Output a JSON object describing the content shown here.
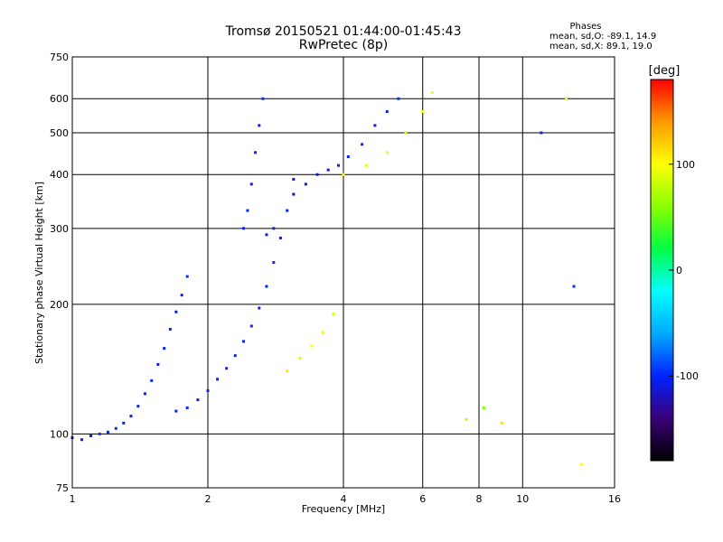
{
  "chart_data": {
    "type": "scatter",
    "title": "Tromsø 20150521 01:44:00-01:45:43",
    "subtitle": "RwPretec (8p)",
    "xlabel": "Frequency [MHz]",
    "ylabel": "Stationary phase Virtual Height [km]",
    "x_scale": "log",
    "y_scale": "log",
    "xlim": [
      1,
      16
    ],
    "ylim": [
      75,
      750
    ],
    "x_ticks": [
      "1",
      "2",
      "4",
      "6",
      "8",
      "10",
      "16"
    ],
    "x_tick_values": [
      1,
      2,
      4,
      6,
      8,
      10,
      16
    ],
    "y_ticks": [
      "75",
      "100",
      "200",
      "300",
      "400",
      "500",
      "600",
      "750"
    ],
    "y_tick_values": [
      75,
      100,
      200,
      300,
      400,
      500,
      600,
      750
    ],
    "grid": true,
    "phase_info": {
      "heading": "Phases",
      "line_o": "mean, sd,O: -89.1, 14.9",
      "line_x": "mean, sd,X: 89.1, 19.0"
    },
    "colorbar": {
      "label": "[deg]",
      "range": [
        -180,
        180
      ],
      "ticks": [
        "100",
        "0",
        "-100"
      ],
      "tick_values": [
        100,
        0,
        -100
      ],
      "colors": [
        "#000000",
        "#3a0078",
        "#0022ff",
        "#00aaff",
        "#00ffff",
        "#00ff44",
        "#88ff00",
        "#ffff00",
        "#ff9900",
        "#ff0000"
      ]
    },
    "series": [
      {
        "name": "",
        "trace_role": "low-E-spread",
        "points": [
          [
            1.0,
            98,
            -105
          ],
          [
            1.05,
            97,
            -100
          ],
          [
            1.1,
            99,
            -110
          ],
          [
            1.15,
            100,
            -95
          ],
          [
            1.2,
            101,
            -102
          ],
          [
            1.25,
            103,
            -98
          ],
          [
            1.3,
            106,
            -100
          ],
          [
            1.35,
            110,
            -104
          ],
          [
            1.4,
            116,
            -99
          ],
          [
            1.45,
            124,
            -101
          ],
          [
            1.5,
            133,
            -97
          ],
          [
            1.55,
            145,
            -103
          ],
          [
            1.6,
            158,
            -100
          ],
          [
            1.65,
            175,
            -98
          ],
          [
            1.7,
            192,
            -102
          ],
          [
            1.75,
            210,
            -100
          ],
          [
            1.8,
            232,
            -96
          ]
        ]
      },
      {
        "name": "",
        "trace_role": "F-layer-lower",
        "points": [
          [
            1.7,
            113,
            -100
          ],
          [
            1.8,
            115,
            -98
          ],
          [
            1.9,
            120,
            -102
          ],
          [
            2.0,
            126,
            -99
          ],
          [
            2.1,
            134,
            -101
          ],
          [
            2.2,
            142,
            -97
          ],
          [
            2.3,
            152,
            -103
          ],
          [
            2.4,
            164,
            -100
          ],
          [
            2.5,
            178,
            -98
          ],
          [
            2.6,
            196,
            -102
          ],
          [
            2.7,
            220,
            -100
          ],
          [
            2.8,
            250,
            -96
          ],
          [
            2.9,
            285,
            -104
          ],
          [
            3.0,
            330,
            -100
          ],
          [
            3.1,
            390,
            -105
          ]
        ]
      },
      {
        "name": "",
        "trace_role": "F2-cusp",
        "points": [
          [
            2.4,
            300,
            -100
          ],
          [
            2.45,
            330,
            -98
          ],
          [
            2.5,
            380,
            -102
          ],
          [
            2.55,
            450,
            -99
          ],
          [
            2.6,
            520,
            -101
          ],
          [
            2.65,
            600,
            -97
          ],
          [
            2.7,
            290,
            -103
          ],
          [
            2.8,
            300,
            -100
          ]
        ]
      },
      {
        "name": "",
        "trace_role": "F2-o-upper",
        "points": [
          [
            3.1,
            360,
            -120
          ],
          [
            3.3,
            380,
            -115
          ],
          [
            3.5,
            400,
            -110
          ],
          [
            3.7,
            410,
            -108
          ],
          [
            3.9,
            420,
            -105
          ],
          [
            4.1,
            440,
            -100
          ],
          [
            4.4,
            470,
            -98
          ],
          [
            4.7,
            520,
            -102
          ],
          [
            5.0,
            560,
            -100
          ],
          [
            5.3,
            600,
            -96
          ]
        ]
      },
      {
        "name": "",
        "trace_role": "x-mode-lower",
        "points": [
          [
            3.0,
            140,
            110
          ],
          [
            3.2,
            150,
            105
          ],
          [
            3.4,
            160,
            100
          ],
          [
            3.6,
            172,
            95
          ],
          [
            3.8,
            190,
            90
          ]
        ]
      },
      {
        "name": "",
        "trace_role": "x-mode-upper",
        "points": [
          [
            4.0,
            400,
            100
          ],
          [
            4.5,
            420,
            95
          ],
          [
            5.0,
            450,
            90
          ],
          [
            5.5,
            500,
            88
          ],
          [
            6.0,
            560,
            92
          ],
          [
            6.3,
            620,
            95
          ]
        ]
      },
      {
        "name": "",
        "trace_role": "scattered",
        "points": [
          [
            7.5,
            108,
            80
          ],
          [
            8.2,
            115,
            60
          ],
          [
            9.0,
            106,
            110
          ],
          [
            11.0,
            500,
            -100
          ],
          [
            12.5,
            600,
            90
          ],
          [
            13.0,
            220,
            -95
          ],
          [
            13.5,
            85,
            100
          ]
        ]
      }
    ]
  }
}
